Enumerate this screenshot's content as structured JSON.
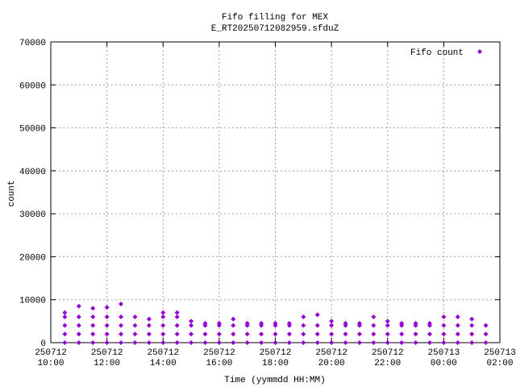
{
  "chart_data": {
    "type": "scatter",
    "title": "Fifo filling for MEX",
    "subtitle": "E_RT20250712082959.sfduZ",
    "x_label": "Time (yymmdd HH:MM)",
    "y_label": "count",
    "xlim": [
      "250712 10:00",
      "250713 02:00"
    ],
    "xticks": [
      "250712 10:00",
      "250712 12:00",
      "250712 14:00",
      "250712 16:00",
      "250712 18:00",
      "250712 20:00",
      "250712 22:00",
      "250713 00:00",
      "250713 02:00"
    ],
    "ylim": [
      0,
      70000
    ],
    "yticks": [
      0,
      10000,
      20000,
      30000,
      40000,
      50000,
      60000,
      70000
    ],
    "grid": true,
    "legend": "upper right",
    "series": [
      {
        "name": "Fifo count",
        "color": "#9400d3",
        "x": [
          "250712 10:30",
          "250712 10:30",
          "250712 10:30",
          "250712 10:30",
          "250712 10:30",
          "250712 11:00",
          "250712 11:00",
          "250712 11:00",
          "250712 11:00",
          "250712 11:00",
          "250712 11:30",
          "250712 11:30",
          "250712 11:30",
          "250712 11:30",
          "250712 11:30",
          "250712 12:00",
          "250712 12:00",
          "250712 12:00",
          "250712 12:00",
          "250712 12:00",
          "250712 12:30",
          "250712 12:30",
          "250712 12:30",
          "250712 12:30",
          "250712 12:30",
          "250712 13:00",
          "250712 13:00",
          "250712 13:00",
          "250712 13:00",
          "250712 13:30",
          "250712 13:30",
          "250712 13:30",
          "250712 13:30",
          "250712 14:00",
          "250712 14:00",
          "250712 14:00",
          "250712 14:00",
          "250712 14:00",
          "250712 14:30",
          "250712 14:30",
          "250712 14:30",
          "250712 14:30",
          "250712 14:30",
          "250712 15:00",
          "250712 15:00",
          "250712 15:00",
          "250712 15:00",
          "250712 15:30",
          "250712 15:30",
          "250712 15:30",
          "250712 15:30",
          "250712 16:00",
          "250712 16:00",
          "250712 16:00",
          "250712 16:00",
          "250712 16:30",
          "250712 16:30",
          "250712 16:30",
          "250712 16:30",
          "250712 17:00",
          "250712 17:00",
          "250712 17:00",
          "250712 17:00",
          "250712 17:30",
          "250712 17:30",
          "250712 17:30",
          "250712 17:30",
          "250712 18:00",
          "250712 18:00",
          "250712 18:00",
          "250712 18:00",
          "250712 18:30",
          "250712 18:30",
          "250712 18:30",
          "250712 18:30",
          "250712 19:00",
          "250712 19:00",
          "250712 19:00",
          "250712 19:00",
          "250712 19:30",
          "250712 19:30",
          "250712 19:30",
          "250712 19:30",
          "250712 20:00",
          "250712 20:00",
          "250712 20:00",
          "250712 20:00",
          "250712 20:30",
          "250712 20:30",
          "250712 20:30",
          "250712 20:30",
          "250712 21:00",
          "250712 21:00",
          "250712 21:00",
          "250712 21:00",
          "250712 21:30",
          "250712 21:30",
          "250712 21:30",
          "250712 21:30",
          "250712 22:00",
          "250712 22:00",
          "250712 22:00",
          "250712 22:00",
          "250712 22:30",
          "250712 22:30",
          "250712 22:30",
          "250712 22:30",
          "250712 23:00",
          "250712 23:00",
          "250712 23:00",
          "250712 23:00",
          "250712 23:30",
          "250712 23:30",
          "250712 23:30",
          "250712 23:30",
          "250713 00:00",
          "250713 00:00",
          "250713 00:00",
          "250713 00:00",
          "250713 00:30",
          "250713 00:30",
          "250713 00:30",
          "250713 00:30",
          "250713 01:00",
          "250713 01:00",
          "250713 01:00",
          "250713 01:00",
          "250713 01:30",
          "250713 01:30",
          "250713 01:30"
        ],
        "values": [
          0,
          2000,
          4000,
          6000,
          7000,
          0,
          2000,
          4000,
          6000,
          8500,
          0,
          2000,
          4000,
          6000,
          8000,
          0,
          2000,
          4000,
          6000,
          8200,
          0,
          2000,
          4000,
          6000,
          9000,
          0,
          2000,
          4000,
          6000,
          0,
          2000,
          4000,
          5500,
          0,
          2000,
          4000,
          6000,
          7000,
          0,
          2000,
          4000,
          6000,
          7000,
          0,
          2000,
          4000,
          5000,
          0,
          2000,
          4000,
          4500,
          0,
          2000,
          4000,
          4500,
          0,
          2000,
          4000,
          5500,
          0,
          2000,
          4000,
          4500,
          0,
          2000,
          4000,
          4500,
          0,
          2000,
          4000,
          4500,
          0,
          2000,
          4000,
          4500,
          0,
          2000,
          4000,
          6000,
          0,
          2000,
          4000,
          6500,
          0,
          2000,
          4000,
          5000,
          0,
          2000,
          4000,
          4500,
          0,
          2000,
          4000,
          4500,
          0,
          2000,
          4000,
          6000,
          0,
          2000,
          4000,
          5000,
          0,
          2000,
          4000,
          4500,
          0,
          2000,
          4000,
          4500,
          0,
          2000,
          4000,
          4500,
          0,
          2000,
          4000,
          6000,
          0,
          2000,
          4000,
          6000,
          0,
          2000,
          4000,
          5500,
          0,
          2000,
          4000
        ]
      }
    ]
  }
}
